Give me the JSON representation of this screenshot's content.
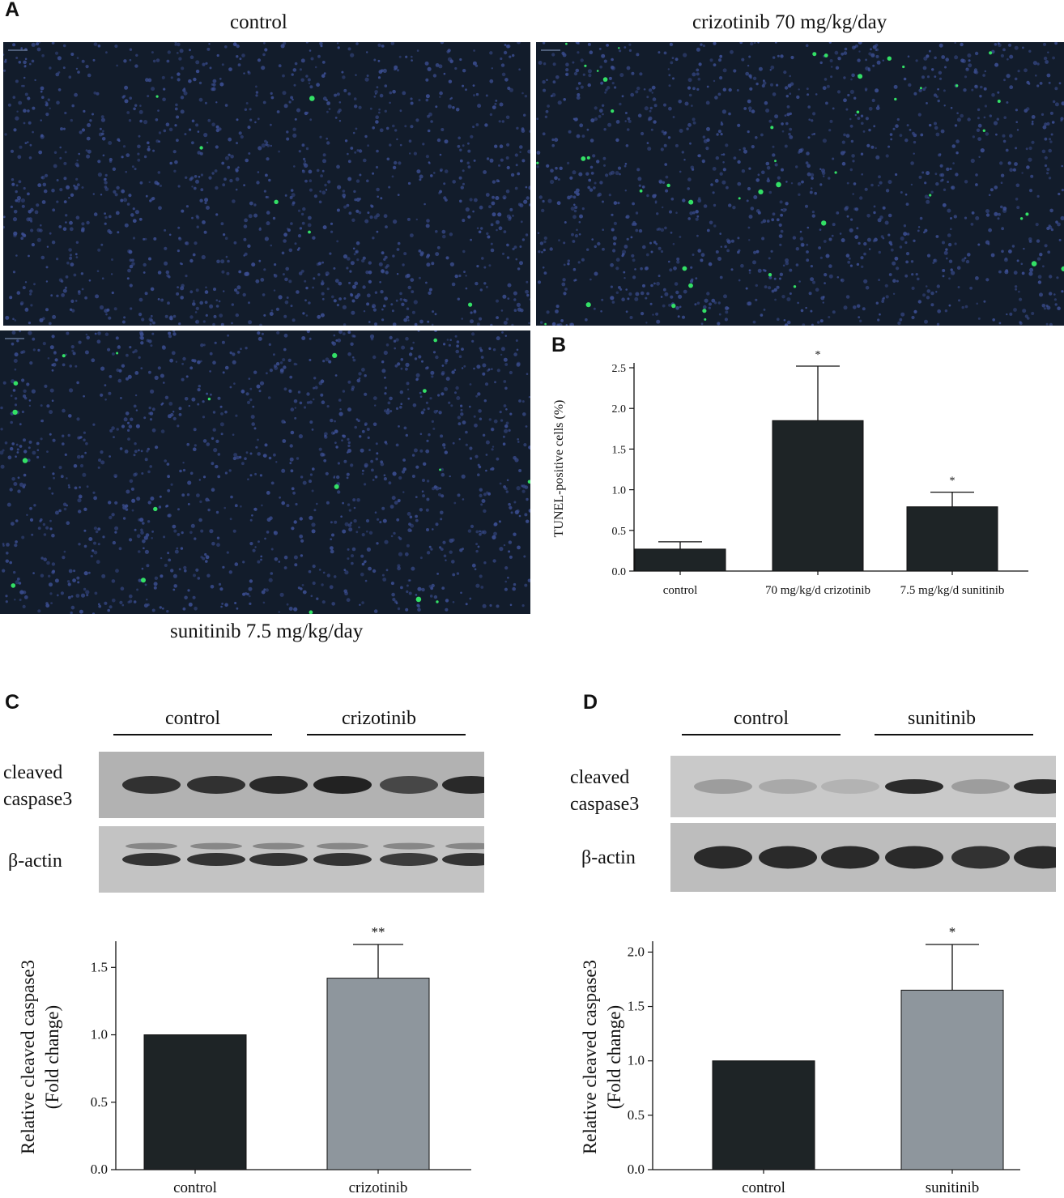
{
  "panels": {
    "A": {
      "letter": "A",
      "labels": {
        "control": "control",
        "crizotinib": "crizotinib 70 mg/kg/day",
        "sunitinib": "sunitinib 7.5 mg/kg/day"
      }
    },
    "B": {
      "letter": "B"
    },
    "C": {
      "letter": "C",
      "groups": [
        "control",
        "crizotinib"
      ],
      "rows": [
        "cleaved caspase3",
        "β-actin"
      ]
    },
    "D": {
      "letter": "D",
      "groups": [
        "control",
        "sunitinib"
      ],
      "rows": [
        "cleaved caspase3",
        "β-actin"
      ]
    }
  },
  "colors": {
    "dark_bar": "#1e2426",
    "grey_bar": "#8e969d",
    "micro_bg": "#121c2b",
    "nucleus": "#3c4f94",
    "tunel": "#33e066"
  },
  "chart_data": [
    {
      "panel": "B",
      "type": "bar",
      "categories": [
        "control",
        "70 mg/kg/d crizotinib",
        "7.5 mg/kg/d sunitinib"
      ],
      "values": [
        0.27,
        1.85,
        0.79
      ],
      "error_upper": [
        0.36,
        2.52,
        0.97
      ],
      "significance": [
        "",
        "*",
        "*"
      ],
      "colors": [
        "#1e2426",
        "#1e2426",
        "#1e2426"
      ],
      "xlabel": "",
      "ylabel": "TUNEL-positive cells (%)",
      "ylim": [
        0,
        2.5
      ],
      "yticks": [
        "0.0",
        "0.5",
        "1.0",
        "1.5",
        "2.0",
        "2.5"
      ],
      "grid": false
    },
    {
      "panel": "C",
      "type": "bar",
      "categories": [
        "control",
        "crizotinib"
      ],
      "values": [
        1.0,
        1.42
      ],
      "error_upper": [
        1.0,
        1.67
      ],
      "significance": [
        "",
        "**"
      ],
      "colors": [
        "#1e2426",
        "#8e969d"
      ],
      "xlabel": "",
      "ylabel": "Relative cleaved caspase3 (Fold change)",
      "ylim": [
        0,
        1.5
      ],
      "yticks": [
        "0.0",
        "0.5",
        "1.0",
        "1.5"
      ],
      "grid": false
    },
    {
      "panel": "D",
      "type": "bar",
      "categories": [
        "control",
        "sunitinib"
      ],
      "values": [
        1.0,
        1.65
      ],
      "error_upper": [
        1.0,
        2.07
      ],
      "significance": [
        "",
        "*"
      ],
      "colors": [
        "#1e2426",
        "#8e969d"
      ],
      "xlabel": "",
      "ylabel": "Relative cleaved caspase3 (Fold change)",
      "ylim": [
        0,
        2.0
      ],
      "yticks": [
        "0.0",
        "0.5",
        "1.0",
        "1.5",
        "2.0"
      ],
      "grid": false
    }
  ]
}
